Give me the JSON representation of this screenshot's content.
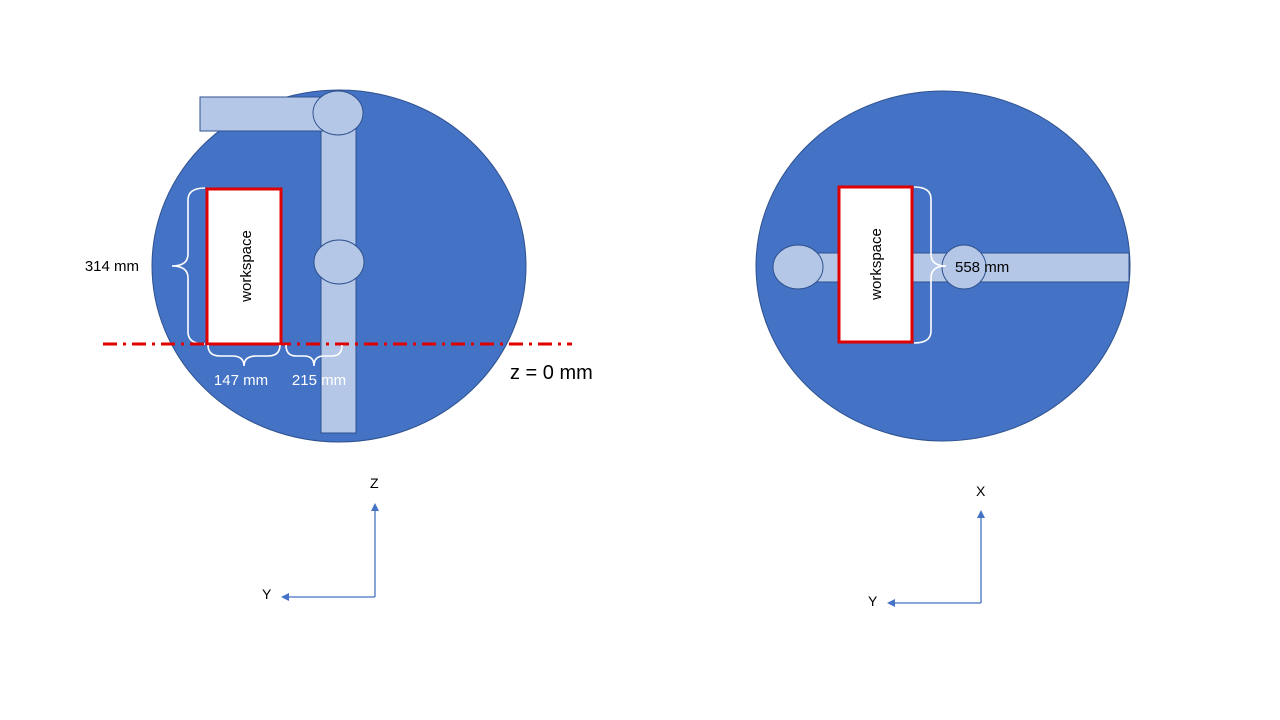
{
  "colors": {
    "disc": "#4472c4",
    "disc_stroke": "#2f528f",
    "arm": "#b4c7e7",
    "arm_stroke": "#2f528f",
    "workspace_border": "#e00000",
    "zero_line": "#e00000",
    "axis": "#4472c4",
    "brace": "#ffffff"
  },
  "left_view": {
    "workspace_label": "workspace",
    "height_dim": "314 mm",
    "width_dim": "147 mm",
    "offset_dim": "215 mm",
    "zero_line_label": "z = 0 mm",
    "axis_vertical": "Z",
    "axis_horizontal": "Y"
  },
  "right_view": {
    "workspace_label": "workspace",
    "dim": "558 mm",
    "axis_vertical": "X",
    "axis_horizontal": "Y"
  }
}
